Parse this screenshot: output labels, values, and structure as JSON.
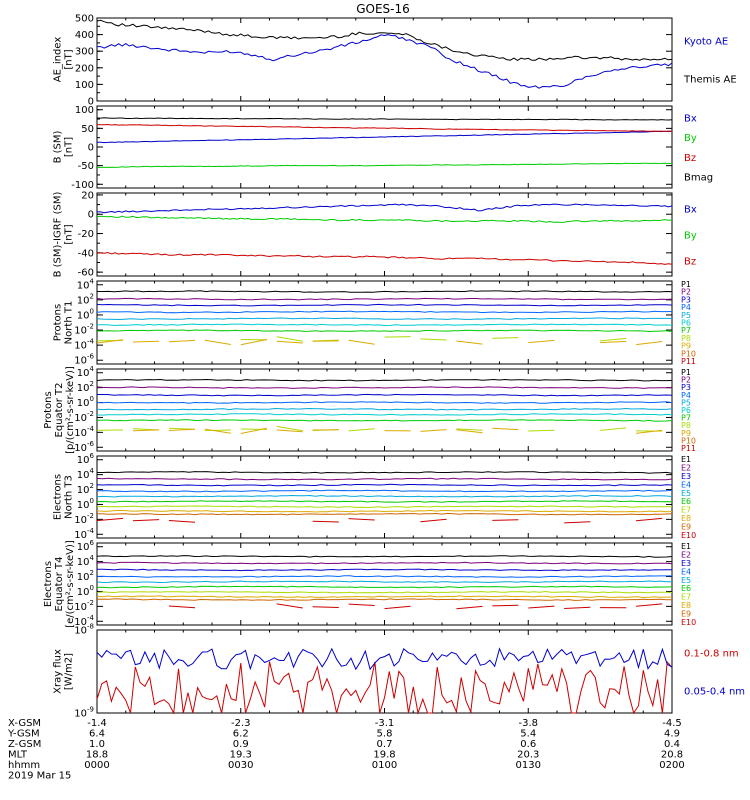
{
  "title": "GOES-16",
  "chart_data": {
    "type": "line",
    "x_tick_times": [
      "0000",
      "0030",
      "0100",
      "0130",
      "0200"
    ],
    "panels": [
      {
        "id": "ae",
        "ylabel": [
          "AE_index",
          "[nT]"
        ],
        "scale": "linear",
        "ylim": [
          0,
          500
        ],
        "ticks": [
          0,
          100,
          200,
          300,
          400,
          500
        ],
        "tick_labels": [
          "0",
          "100",
          "200",
          "300",
          "400",
          "500"
        ],
        "series": [
          {
            "name": "Kyoto AE",
            "color": "#0000cc",
            "values": [
              320,
              340,
              330,
              310,
              300,
              290,
              300,
              280,
              250,
              280,
              300,
              330,
              360,
              400,
              370,
              330,
              250,
              200,
              150,
              100,
              80,
              90,
              140,
              180,
              200,
              210,
              220
            ]
          },
          {
            "name": "Themis AE",
            "color": "#000000",
            "values": [
              490,
              460,
              450,
              440,
              430,
              420,
              400,
              390,
              380,
              380,
              380,
              390,
              410,
              410,
              400,
              350,
              310,
              280,
              260,
              250,
              250,
              260,
              260,
              260,
              250,
              250,
              250
            ]
          }
        ]
      },
      {
        "id": "bsm",
        "ylabel": [
          "B (SM)",
          "[nT]"
        ],
        "scale": "linear",
        "ylim": [
          -110,
          110
        ],
        "ticks": [
          -100,
          -50,
          0,
          50,
          100
        ],
        "tick_labels": [
          "-100",
          "-50",
          "0",
          "50",
          "100"
        ],
        "series": [
          {
            "name": "Bx",
            "color": "#0000cc",
            "values": [
              12,
              14,
              16,
              18,
              20,
              22,
              24,
              26,
              28,
              30,
              32,
              34,
              36,
              38,
              40,
              42
            ]
          },
          {
            "name": "By",
            "color": "#00cc00",
            "values": [
              -55,
              -53,
              -52,
              -52,
              -51,
              -50,
              -50,
              -50,
              -49,
              -48,
              -48,
              -47,
              -46,
              -45,
              -44,
              -44
            ]
          },
          {
            "name": "Bz",
            "color": "#cc0000",
            "values": [
              60,
              59,
              58,
              56,
              55,
              54,
              52,
              51,
              50,
              48,
              47,
              46,
              45,
              44,
              43,
              42
            ]
          },
          {
            "name": "Bmag",
            "color": "#000000",
            "values": [
              78,
              77,
              77,
              76,
              76,
              76,
              75,
              75,
              75,
              74,
              74,
              74,
              74,
              73,
              73,
              73
            ]
          }
        ]
      },
      {
        "id": "bigrf",
        "ylabel": [
          "B (SM)-IGRF (SM)",
          "[nT]"
        ],
        "scale": "linear",
        "ylim": [
          -64,
          22
        ],
        "ticks": [
          -60,
          -40,
          -20,
          0,
          20
        ],
        "tick_labels": [
          "-60",
          "-40",
          "-20",
          "0",
          "20"
        ],
        "series": [
          {
            "name": "Bx",
            "color": "#0000cc",
            "values": [
              2,
              3,
              4,
              5,
              6,
              7,
              8,
              9,
              10,
              8,
              4,
              9,
              10,
              10,
              9,
              8
            ]
          },
          {
            "name": "By",
            "color": "#00cc00",
            "values": [
              -2,
              -3,
              -4,
              -4,
              -5,
              -5,
              -6,
              -6,
              -6,
              -7,
              -7,
              -7,
              -8,
              -7,
              -7,
              -6
            ]
          },
          {
            "name": "Bz",
            "color": "#cc0000",
            "values": [
              -40,
              -41,
              -42,
              -42,
              -43,
              -43,
              -44,
              -44,
              -45,
              -46,
              -46,
              -47,
              -48,
              -49,
              -50,
              -52
            ]
          }
        ]
      },
      {
        "id": "p_north",
        "ylabel": [
          "Protons",
          "North T1"
        ],
        "scale": "log",
        "ylim": [
          -6.5,
          4.5
        ],
        "ticks": [
          -6,
          -4,
          -2,
          0,
          2,
          4
        ],
        "tick_labels": [
          "10^-6",
          "10^-4",
          "10^-2",
          "10^0",
          "10^2",
          "10^4"
        ],
        "legend_small": true,
        "series": [
          {
            "name": "P1",
            "color": "#000000",
            "log": 3.1
          },
          {
            "name": "P2",
            "color": "#7a007a",
            "log": 2.1
          },
          {
            "name": "P3",
            "color": "#0000cc",
            "log": 1.3
          },
          {
            "name": "P4",
            "color": "#0066ff",
            "log": 0.4
          },
          {
            "name": "P5",
            "color": "#00aadd",
            "log": -0.5
          },
          {
            "name": "P6",
            "color": "#00cccc",
            "log": -1.3
          },
          {
            "name": "P7",
            "color": "#00cc00",
            "log": -2.1
          },
          {
            "name": "P8",
            "color": "#aadd00",
            "log": -3.2
          },
          {
            "name": "P9",
            "color": "#ddaa00",
            "log": -3.6
          },
          {
            "name": "P10",
            "color": "#cc6600",
            "log": null
          },
          {
            "name": "P11",
            "color": "#cc0000",
            "log": null
          }
        ]
      },
      {
        "id": "p_equator",
        "ylabel": [
          "Protons",
          "Equator T2",
          "[p/(cm²-s-sr-keV)]"
        ],
        "scale": "log",
        "ylim": [
          -6.5,
          4.5
        ],
        "ticks": [
          -6,
          -4,
          -2,
          0,
          2,
          4
        ],
        "tick_labels": [
          "10^-6",
          "10^-4",
          "10^-2",
          "10^0",
          "10^2",
          "10^4"
        ],
        "legend_small": true,
        "series": [
          {
            "name": "P1",
            "color": "#000000",
            "log": 3.0
          },
          {
            "name": "P2",
            "color": "#7a007a",
            "log": 2.0
          },
          {
            "name": "P3",
            "color": "#0000cc",
            "log": 1.0
          },
          {
            "name": "P4",
            "color": "#0066ff",
            "log": 0.0
          },
          {
            "name": "P5",
            "color": "#00aadd",
            "log": -0.9
          },
          {
            "name": "P6",
            "color": "#00cccc",
            "log": -1.6
          },
          {
            "name": "P7",
            "color": "#00cc00",
            "log": -2.4
          },
          {
            "name": "P8",
            "color": "#aadd00",
            "log": -3.5
          },
          {
            "name": "P9",
            "color": "#ddaa00",
            "log": -3.8
          },
          {
            "name": "P10",
            "color": "#cc6600",
            "log": null
          },
          {
            "name": "P11",
            "color": "#cc0000",
            "log": null
          }
        ]
      },
      {
        "id": "e_north",
        "ylabel": [
          "Electrons",
          "North T3"
        ],
        "scale": "log",
        "ylim": [
          -4.5,
          6.5
        ],
        "ticks": [
          -4,
          -2,
          0,
          2,
          4,
          6
        ],
        "tick_labels": [
          "10^-4",
          "10^-2",
          "10^0",
          "10^2",
          "10^4",
          "10^6"
        ],
        "legend_small": true,
        "series": [
          {
            "name": "E1",
            "color": "#000000",
            "log": 4.3
          },
          {
            "name": "E2",
            "color": "#7a007a",
            "log": 3.4
          },
          {
            "name": "E3",
            "color": "#0000cc",
            "log": 2.6
          },
          {
            "name": "E4",
            "color": "#0066ff",
            "log": 1.8
          },
          {
            "name": "E5",
            "color": "#00aadd",
            "log": 1.1
          },
          {
            "name": "E6",
            "color": "#00cc00",
            "log": 0.4
          },
          {
            "name": "E7",
            "color": "#aadd00",
            "log": -0.3
          },
          {
            "name": "E8",
            "color": "#ddaa00",
            "log": -0.9
          },
          {
            "name": "E9",
            "color": "#cc6600",
            "log": -1.3
          },
          {
            "name": "E10",
            "color": "#cc0000",
            "log": -2.2
          }
        ]
      },
      {
        "id": "e_equator",
        "ylabel": [
          "Electrons",
          "Equator T4",
          "[e/(cm²-s-sr-keV)]"
        ],
        "scale": "log",
        "ylim": [
          -4.5,
          6.5
        ],
        "ticks": [
          -4,
          -2,
          0,
          2,
          4,
          6
        ],
        "tick_labels": [
          "10^-4",
          "10^-2",
          "10^0",
          "10^2",
          "10^4",
          "10^6"
        ],
        "legend_small": true,
        "series": [
          {
            "name": "E1",
            "color": "#000000",
            "log": 4.7
          },
          {
            "name": "E2",
            "color": "#7a007a",
            "log": 3.8
          },
          {
            "name": "E3",
            "color": "#0000cc",
            "log": 2.9
          },
          {
            "name": "E4",
            "color": "#0066ff",
            "log": 2.0
          },
          {
            "name": "E5",
            "color": "#00aadd",
            "log": 1.3
          },
          {
            "name": "E6",
            "color": "#00cc00",
            "log": 0.6
          },
          {
            "name": "E7",
            "color": "#aadd00",
            "log": -0.1
          },
          {
            "name": "E8",
            "color": "#ddaa00",
            "log": -0.7
          },
          {
            "name": "E9",
            "color": "#cc6600",
            "log": -1.1
          },
          {
            "name": "E10",
            "color": "#cc0000",
            "log": -2.0
          }
        ]
      },
      {
        "id": "xray",
        "ylabel": [
          "Xray flux",
          "[W/m2]"
        ],
        "scale": "log",
        "ylim": [
          -9,
          -8
        ],
        "ticks": [
          -9,
          -8
        ],
        "tick_labels": [
          "10^-9",
          "10^-8"
        ],
        "series": [
          {
            "name": "0.1-0.8 nm",
            "color": "#cc0000",
            "log": -8.65
          },
          {
            "name": "0.05-0.4 nm",
            "color": "#0000cc",
            "log": -8.35
          }
        ]
      }
    ]
  },
  "bottom_table": {
    "rows": [
      {
        "label": "X-GSM",
        "values": [
          "-1.4",
          "-2.3",
          "-3.1",
          "-3.8",
          "-4.5"
        ]
      },
      {
        "label": "Y-GSM",
        "values": [
          "6.4",
          "6.2",
          "5.8",
          "5.4",
          "4.9"
        ]
      },
      {
        "label": "Z-GSM",
        "values": [
          "1.0",
          "0.9",
          "0.7",
          "0.6",
          "0.4"
        ]
      },
      {
        "label": "MLT",
        "values": [
          "18.8",
          "19.3",
          "19.8",
          "20.3",
          "20.8"
        ]
      },
      {
        "label": "hhmm",
        "values": [
          "0000",
          "0030",
          "0100",
          "0130",
          "0200"
        ]
      }
    ],
    "date": "2019 Mar 15"
  }
}
